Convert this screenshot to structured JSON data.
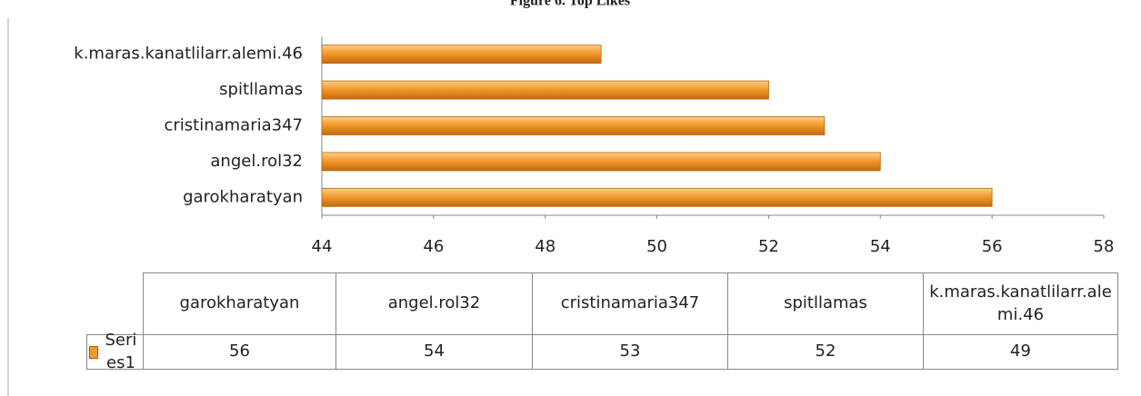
{
  "chart_data": {
    "type": "bar",
    "orientation": "horizontal",
    "title": "Figure 6. Top Likes",
    "categories": [
      "garokharatyan",
      "angel.rol32",
      "cristinamaria347",
      "spitllamas",
      "k.maras.kanatlilarr.alemi.46"
    ],
    "series": [
      {
        "name": "Series1",
        "color": "#f39a2c",
        "values": [
          56,
          54,
          53,
          52,
          49
        ]
      }
    ],
    "xlim": [
      44,
      58
    ],
    "xticks": [
      44,
      46,
      48,
      50,
      52,
      54,
      56,
      58
    ],
    "grid": false,
    "data_table": true
  }
}
